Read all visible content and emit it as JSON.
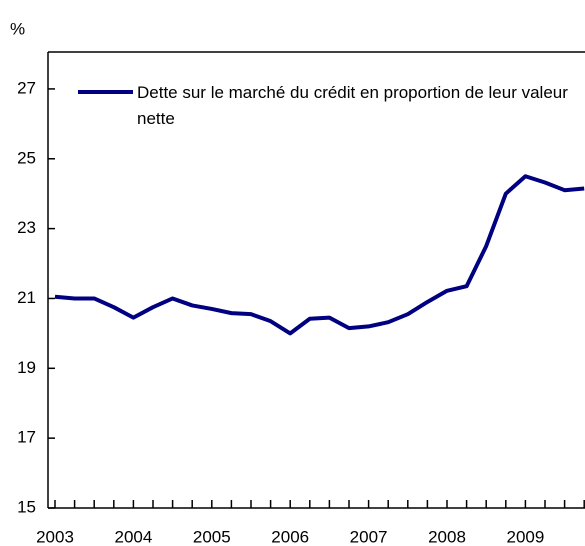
{
  "chart_data": {
    "type": "line",
    "y_label": "%",
    "categories": [
      "2003",
      null,
      null,
      null,
      "2004",
      null,
      null,
      null,
      "2005",
      null,
      null,
      null,
      "2006",
      null,
      null,
      null,
      "2007",
      null,
      null,
      null,
      "2008",
      null,
      null,
      null,
      "2009",
      null,
      null,
      null
    ],
    "series": [
      {
        "name": "Dette sur le marché du crédit en proportion de leur valeur nette",
        "color": "#000080",
        "values": [
          21.05,
          21.0,
          21.0,
          20.75,
          20.45,
          20.75,
          21.0,
          20.8,
          20.7,
          20.58,
          20.55,
          20.35,
          20.0,
          20.42,
          20.45,
          20.15,
          20.2,
          20.32,
          20.55,
          20.9,
          21.22,
          21.35,
          22.5,
          24.0,
          24.5,
          24.32,
          24.1,
          24.15
        ]
      }
    ],
    "ylim": [
      15,
      28
    ],
    "yticks": [
      15,
      17,
      19,
      21,
      23,
      25,
      27
    ],
    "grid": false,
    "legend": "top-left"
  }
}
